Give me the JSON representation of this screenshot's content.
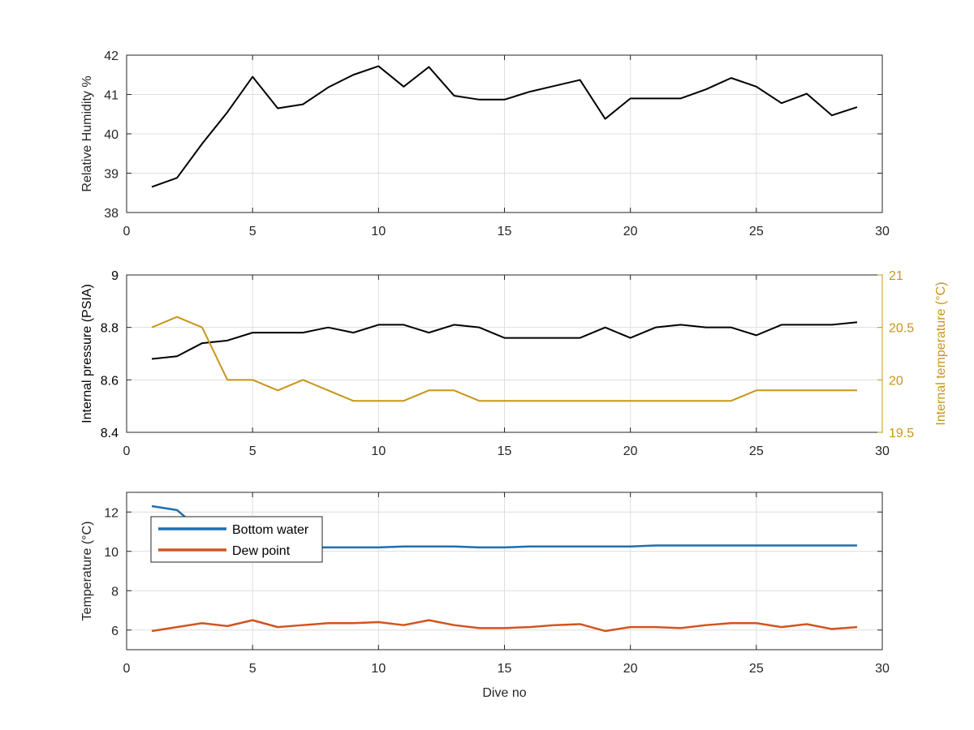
{
  "chart_data": [
    {
      "type": "line",
      "xlabel": "",
      "ylabel": "Relative Humidity %",
      "xlim": [
        0,
        30
      ],
      "ylim": [
        38,
        42
      ],
      "xticks": [
        0,
        5,
        10,
        15,
        20,
        25,
        30
      ],
      "yticks": [
        38,
        39,
        40,
        41,
        42
      ],
      "grid": true,
      "x": [
        1,
        2,
        3,
        4,
        5,
        6,
        7,
        8,
        9,
        10,
        11,
        12,
        13,
        14,
        15,
        16,
        17,
        18,
        19,
        20,
        21,
        22,
        23,
        24,
        25,
        26,
        27,
        28,
        29
      ],
      "series": [
        {
          "color": "#000000",
          "axis": "left",
          "values": [
            38.65,
            38.88,
            39.75,
            40.55,
            41.45,
            40.65,
            40.75,
            41.18,
            41.5,
            41.72,
            41.2,
            41.7,
            40.97,
            40.87,
            40.87,
            41.07,
            41.22,
            41.37,
            40.38,
            40.9,
            40.9,
            40.9,
            41.13,
            41.42,
            41.2,
            40.78,
            41.02,
            40.47,
            40.68
          ]
        }
      ]
    },
    {
      "type": "line",
      "xlabel": "",
      "ylabel": "Internal pressure (PSIA)",
      "ylabel_right": "Internal temperature (°C)",
      "xlim": [
        0,
        30
      ],
      "ylim": [
        8.4,
        9
      ],
      "ylim_right": [
        19.5,
        21
      ],
      "xticks": [
        0,
        5,
        10,
        15,
        20,
        25,
        30
      ],
      "yticks": [
        "8.4",
        "8.6",
        "8.8",
        "9"
      ],
      "yticks_right": [
        "19.5",
        "20",
        "20.5",
        "21"
      ],
      "grid": true,
      "x": [
        1,
        2,
        3,
        4,
        5,
        6,
        7,
        8,
        9,
        10,
        11,
        12,
        13,
        14,
        15,
        16,
        17,
        18,
        19,
        20,
        21,
        22,
        23,
        24,
        25,
        26,
        27,
        28,
        29
      ],
      "series": [
        {
          "color": "#000000",
          "axis": "left",
          "values": [
            8.68,
            8.69,
            8.74,
            8.75,
            8.78,
            8.78,
            8.78,
            8.8,
            8.78,
            8.81,
            8.81,
            8.78,
            8.81,
            8.8,
            8.76,
            8.76,
            8.76,
            8.76,
            8.8,
            8.76,
            8.8,
            8.81,
            8.8,
            8.8,
            8.77,
            8.81,
            8.81,
            8.81,
            8.82
          ]
        },
        {
          "color": "#c8951b",
          "axis": "right",
          "values": [
            20.5,
            20.6,
            20.5,
            20.0,
            20.0,
            19.9,
            20.0,
            19.9,
            19.8,
            19.8,
            19.8,
            19.9,
            19.9,
            19.8,
            19.8,
            19.8,
            19.8,
            19.8,
            19.8,
            19.8,
            19.8,
            19.8,
            19.8,
            19.8,
            19.9,
            19.9,
            19.9,
            19.9,
            19.9
          ]
        }
      ]
    },
    {
      "type": "line",
      "xlabel": "Dive no",
      "ylabel": "Temperature (°C)",
      "xlim": [
        0,
        30
      ],
      "ylim": [
        5,
        13
      ],
      "xticks": [
        0,
        5,
        10,
        15,
        20,
        25,
        30
      ],
      "yticks": [
        6,
        8,
        10,
        12
      ],
      "grid": true,
      "legend_position": "top-left",
      "x": [
        1,
        2,
        3,
        4,
        5,
        6,
        7,
        8,
        9,
        10,
        11,
        12,
        13,
        14,
        15,
        16,
        17,
        18,
        19,
        20,
        21,
        22,
        23,
        24,
        25,
        26,
        27,
        28,
        29
      ],
      "series": [
        {
          "name": "Bottom water",
          "color": "#1f6fad",
          "axis": "left",
          "values": [
            12.3,
            12.1,
            11.0,
            10.4,
            10.2,
            10.2,
            10.2,
            10.2,
            10.2,
            10.2,
            10.25,
            10.25,
            10.25,
            10.2,
            10.2,
            10.25,
            10.25,
            10.25,
            10.25,
            10.25,
            10.3,
            10.3,
            10.3,
            10.3,
            10.3,
            10.3,
            10.3,
            10.3,
            10.3
          ]
        },
        {
          "name": "Dew point",
          "color": "#d2541f",
          "axis": "left",
          "values": [
            5.95,
            6.15,
            6.35,
            6.2,
            6.5,
            6.15,
            6.25,
            6.35,
            6.35,
            6.4,
            6.25,
            6.5,
            6.25,
            6.1,
            6.1,
            6.15,
            6.25,
            6.3,
            5.95,
            6.15,
            6.15,
            6.1,
            6.25,
            6.35,
            6.35,
            6.15,
            6.3,
            6.05,
            6.15
          ]
        }
      ]
    }
  ]
}
